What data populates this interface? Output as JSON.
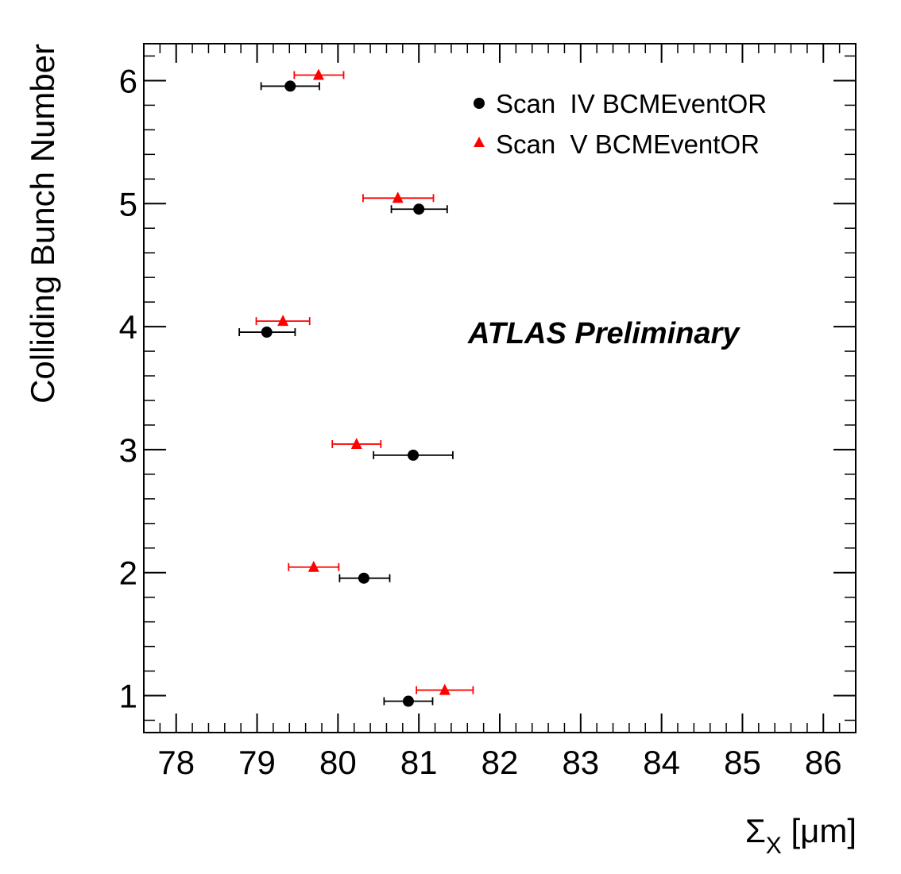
{
  "chart_data": {
    "type": "scatter",
    "xlabel": "Σ",
    "xlabel_sub": "X",
    "xlabel_unit": "[μm]",
    "ylabel": "Colliding Bunch Number",
    "xlim": [
      77.6,
      86.4
    ],
    "ylim": [
      0.7,
      6.3
    ],
    "xticks": [
      "78",
      "79",
      "80",
      "81",
      "82",
      "83",
      "84",
      "85",
      "86"
    ],
    "yticks": [
      "1",
      "2",
      "3",
      "4",
      "5",
      "6"
    ],
    "legend_position": "top-right",
    "annotation": "ATLAS Preliminary",
    "series": [
      {
        "name": "Scan  IV BCMEventOR",
        "marker": "circle",
        "color": "#000000",
        "points": [
          {
            "y": 1,
            "x": 80.87,
            "xerr_low": 0.3,
            "xerr_high": 0.3
          },
          {
            "y": 2,
            "x": 80.32,
            "xerr_low": 0.3,
            "xerr_high": 0.32
          },
          {
            "y": 3,
            "x": 80.93,
            "xerr_low": 0.49,
            "xerr_high": 0.49
          },
          {
            "y": 4,
            "x": 79.12,
            "xerr_low": 0.34,
            "xerr_high": 0.35
          },
          {
            "y": 5,
            "x": 81.0,
            "xerr_low": 0.34,
            "xerr_high": 0.35
          },
          {
            "y": 6,
            "x": 79.41,
            "xerr_low": 0.36,
            "xerr_high": 0.36
          }
        ]
      },
      {
        "name": "Scan  V BCMEventOR",
        "marker": "triangle",
        "color": "#ff0000",
        "points": [
          {
            "y": 1,
            "x": 81.32,
            "xerr_low": 0.35,
            "xerr_high": 0.35
          },
          {
            "y": 2,
            "x": 79.7,
            "xerr_low": 0.31,
            "xerr_high": 0.31
          },
          {
            "y": 3,
            "x": 80.23,
            "xerr_low": 0.3,
            "xerr_high": 0.3
          },
          {
            "y": 4,
            "x": 79.32,
            "xerr_low": 0.33,
            "xerr_high": 0.33
          },
          {
            "y": 5,
            "x": 80.74,
            "xerr_low": 0.43,
            "xerr_high": 0.44
          },
          {
            "y": 6,
            "x": 79.76,
            "xerr_low": 0.3,
            "xerr_high": 0.31
          }
        ]
      }
    ]
  }
}
